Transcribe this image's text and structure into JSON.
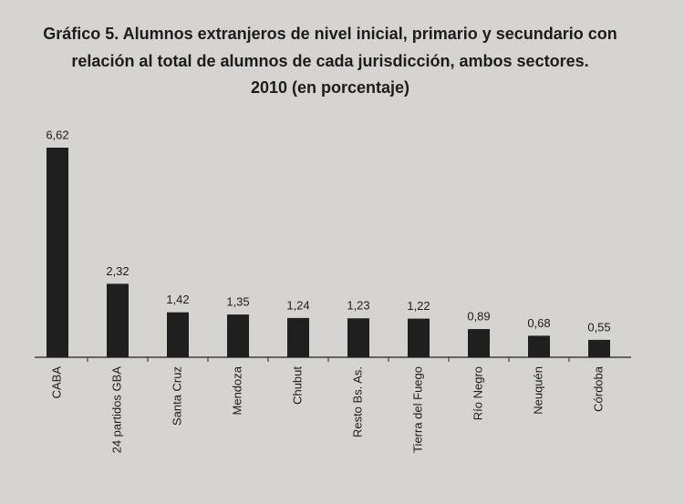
{
  "chart_data": {
    "type": "bar",
    "title": [
      "Gráfico 5. Alumnos extranjeros de nivel inicial, primario y secundario con",
      "relación al total de alumnos de cada jurisdicción, ambos sectores.",
      "2010 (en porcentaje)"
    ],
    "categories": [
      "CABA",
      "24 partidos GBA",
      "Santa Cruz",
      "Mendoza",
      "Chubut",
      "Resto Bs. As.",
      "Tierra del Fuego",
      "Río Negro",
      "Neuquén",
      "Córdoba"
    ],
    "values": [
      6.62,
      2.32,
      1.42,
      1.35,
      1.24,
      1.23,
      1.22,
      0.89,
      0.68,
      0.55
    ],
    "value_labels": [
      "6,62",
      "2,32",
      "1,42",
      "1,35",
      "1,24",
      "1,23",
      "1,22",
      "0,89",
      "0,68",
      "0,55"
    ],
    "color": "#1f1f1f"
  }
}
